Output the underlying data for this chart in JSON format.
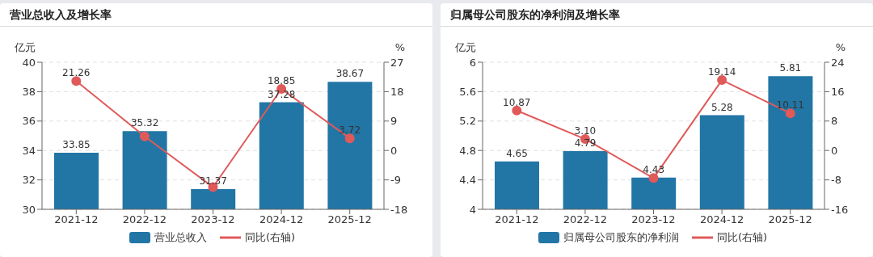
{
  "chart_data": [
    {
      "type": "bar",
      "title": "营业总收入及增长率",
      "ylabel": "亿元",
      "y2label": "%",
      "categories": [
        "2021-12",
        "2022-12",
        "2023-12",
        "2024-12",
        "2025-12"
      ],
      "series": [
        {
          "name": "营业总收入",
          "color": "#2276a6",
          "values": [
            33.85,
            35.32,
            31.37,
            37.28,
            38.67
          ],
          "value_labels": [
            "33.85",
            "35.32",
            "31.37",
            "37.28",
            "38.67"
          ]
        },
        {
          "name": "同比(右轴)",
          "type": "line",
          "axis": "y2",
          "color": "#e05a5a",
          "values": [
            21.26,
            4.3,
            -11.2,
            18.85,
            3.72
          ],
          "value_labels": [
            "21.26",
            null,
            null,
            "18.85",
            "3.72"
          ]
        }
      ],
      "ylim": [
        30,
        40
      ],
      "yticks": [
        30,
        32,
        34,
        36,
        38,
        40
      ],
      "y2lim": [
        -18,
        27
      ],
      "y2ticks": [
        -18,
        -9,
        0,
        9,
        18,
        27
      ],
      "grid": "y",
      "legend": "bottom",
      "marker": "circle"
    },
    {
      "type": "bar",
      "title": "归属母公司股东的净利润及增长率",
      "ylabel": "亿元",
      "y2label": "%",
      "categories": [
        "2021-12",
        "2022-12",
        "2023-12",
        "2024-12",
        "2025-12"
      ],
      "series": [
        {
          "name": "归属母公司股东的净利润",
          "color": "#2276a6",
          "values": [
            4.65,
            4.79,
            4.43,
            5.28,
            5.81
          ],
          "value_labels": [
            "4.65",
            "4.79",
            "4.43",
            "5.28",
            "5.81"
          ]
        },
        {
          "name": "同比(右轴)",
          "type": "line",
          "axis": "y2",
          "color": "#e05a5a",
          "values": [
            10.87,
            3.1,
            -7.5,
            19.14,
            10.11
          ],
          "value_labels": [
            "10.87",
            "3.10",
            null,
            "19.14",
            "10.11"
          ]
        }
      ],
      "ylim": [
        4,
        6
      ],
      "yticks": [
        4,
        4.4,
        4.8,
        5.2,
        5.6,
        6
      ],
      "y2lim": [
        -16,
        24
      ],
      "y2ticks": [
        -16,
        -8,
        0,
        8,
        16,
        24
      ],
      "grid": "y",
      "legend": "bottom",
      "marker": "circle"
    }
  ]
}
